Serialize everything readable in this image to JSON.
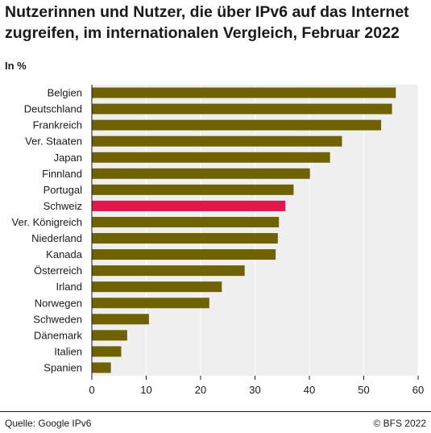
{
  "title": "Nutzerinnen und Nutzer, die über IPv6 auf das Internet zugreifen, im internationalen Vergleich, Februar 2022",
  "unit_label": "In %",
  "footer": {
    "source": "Quelle: Google IPv6",
    "copyright": "© BFS 2022"
  },
  "colors": {
    "bar": "#6e6300",
    "highlight": "#e3174b",
    "plot_bg": "#efefef",
    "grid": "#ffffff"
  },
  "chart_data": {
    "type": "bar",
    "orientation": "horizontal",
    "categories": [
      "Belgien",
      "Deutschland",
      "Frankreich",
      "Ver. Staaten",
      "Japan",
      "Finnland",
      "Portugal",
      "Schweiz",
      "Ver. Königreich",
      "Niederland",
      "Kanada",
      "Österreich",
      "Irland",
      "Norwegen",
      "Schweden",
      "Dänemark",
      "Italien",
      "Spanien"
    ],
    "values": [
      55.9,
      55.2,
      53.2,
      46.0,
      43.8,
      40.1,
      37.1,
      35.6,
      34.4,
      34.2,
      33.8,
      28.1,
      23.9,
      21.6,
      10.5,
      6.5,
      5.4,
      3.5
    ],
    "highlight": "Schweiz",
    "xlim": [
      0,
      60
    ],
    "xticks": [
      0,
      10,
      20,
      30,
      40,
      50,
      60
    ],
    "grid": true,
    "xlabel": "",
    "ylabel": ""
  }
}
